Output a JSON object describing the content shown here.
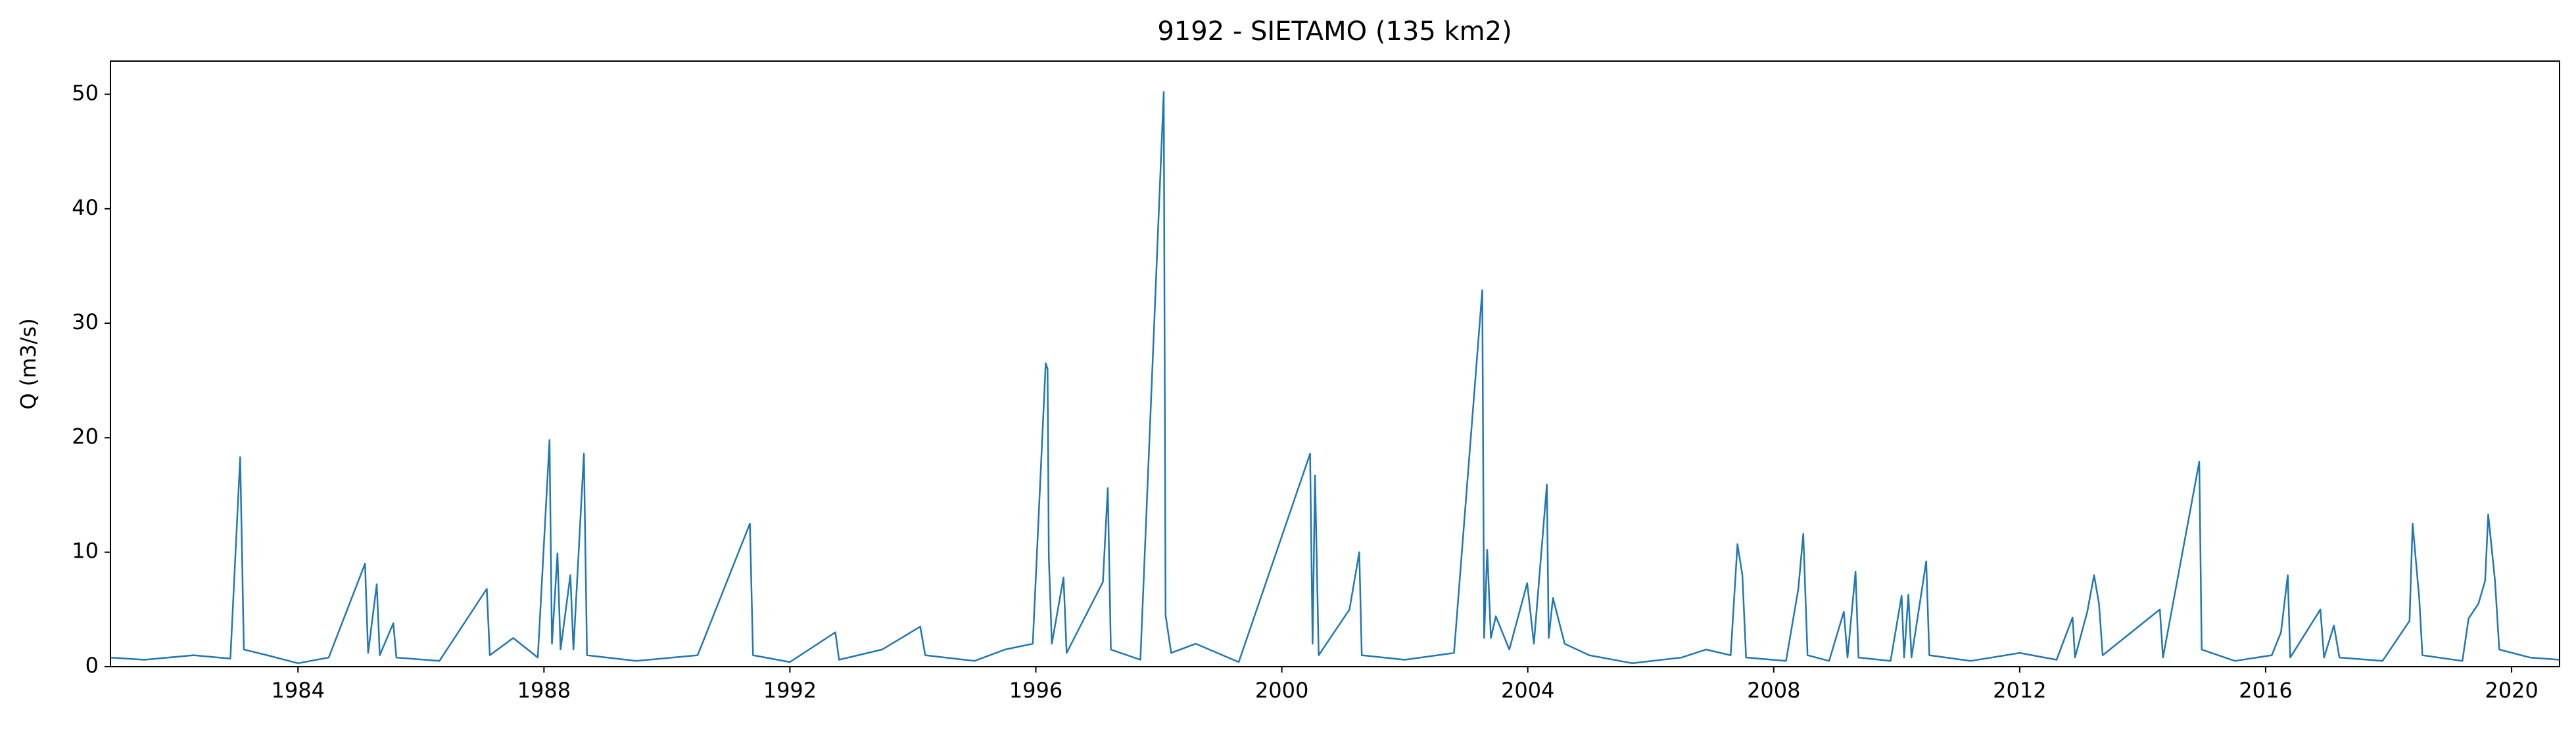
{
  "chart_data": {
    "type": "line",
    "title": "9192 - SIETAMO (135 km2)",
    "ylabel": "Q (m3/s)",
    "color": "#1f77b4",
    "x": [
      1980.95,
      1981.5,
      1982.3,
      1982.9,
      1983.06,
      1983.12,
      1983.5,
      1984.0,
      1984.5,
      1985.09,
      1985.14,
      1985.28,
      1985.33,
      1985.55,
      1985.6,
      1986.3,
      1987.07,
      1987.12,
      1987.5,
      1987.9,
      1988.09,
      1988.13,
      1988.22,
      1988.27,
      1988.43,
      1988.48,
      1988.65,
      1988.7,
      1989.5,
      1990.5,
      1991.35,
      1991.4,
      1992.0,
      1992.74,
      1992.8,
      1993.5,
      1994.12,
      1994.2,
      1995.0,
      1995.5,
      1995.95,
      1996.16,
      1996.19,
      1996.21,
      1996.26,
      1996.45,
      1996.5,
      1997.09,
      1997.17,
      1997.22,
      1997.7,
      1998.08,
      1998.11,
      1998.2,
      1998.6,
      1999.3,
      2000.46,
      2000.5,
      2000.54,
      2000.6,
      2001.1,
      2001.26,
      2001.3,
      2002.0,
      2002.8,
      2003.26,
      2003.29,
      2003.34,
      2003.4,
      2003.48,
      2003.7,
      2003.99,
      2004.1,
      2004.31,
      2004.34,
      2004.41,
      2004.6,
      2005.0,
      2005.7,
      2006.5,
      2006.9,
      2007.3,
      2007.41,
      2007.49,
      2007.55,
      2008.2,
      2008.4,
      2008.48,
      2008.55,
      2008.9,
      2009.14,
      2009.2,
      2009.33,
      2009.38,
      2009.9,
      2010.08,
      2010.12,
      2010.19,
      2010.24,
      2010.48,
      2010.53,
      2011.2,
      2012.0,
      2012.6,
      2012.86,
      2012.9,
      2013.1,
      2013.21,
      2013.29,
      2013.35,
      2014.28,
      2014.33,
      2014.92,
      2014.96,
      2015.5,
      2016.1,
      2016.25,
      2016.36,
      2016.4,
      2016.89,
      2016.95,
      2017.11,
      2017.2,
      2017.9,
      2018.34,
      2018.39,
      2018.5,
      2018.55,
      2019.2,
      2019.3,
      2019.46,
      2019.57,
      2019.62,
      2019.73,
      2019.8,
      2020.3,
      2020.78
    ],
    "values": [
      0.8,
      0.6,
      1.0,
      0.7,
      18.3,
      1.5,
      1.0,
      0.3,
      0.8,
      9.0,
      1.2,
      7.2,
      1.0,
      3.8,
      0.8,
      0.5,
      6.8,
      1.0,
      2.5,
      0.8,
      19.8,
      2,
      9.9,
      1.5,
      8.0,
      1.5,
      18.6,
      1.0,
      0.5,
      1.0,
      12.5,
      1.0,
      0.4,
      3.0,
      0.6,
      1.5,
      3.5,
      1.0,
      0.5,
      1.5,
      2,
      26.5,
      26,
      9.6,
      2,
      7.8,
      1.2,
      7.4,
      15.6,
      1.5,
      0.6,
      50.2,
      4.5,
      1.2,
      2.0,
      0.4,
      18.6,
      2,
      16.7,
      1,
      5.0,
      10,
      1.0,
      0.6,
      1.2,
      32.9,
      2.5,
      10.2,
      2.5,
      4.4,
      1.5,
      7.3,
      2,
      15.9,
      2.5,
      6.0,
      2.0,
      1.0,
      0.3,
      0.8,
      1.5,
      1.0,
      10.7,
      8.0,
      0.8,
      0.5,
      6.8,
      11.6,
      1,
      0.5,
      4.8,
      0.8,
      8.3,
      0.8,
      0.5,
      6.2,
      0.8,
      6.3,
      0.8,
      9.2,
      1,
      0.5,
      1.2,
      0.6,
      4.3,
      0.8,
      4.8,
      8.0,
      5.5,
      1.0,
      5.0,
      0.8,
      17.9,
      1.5,
      0.5,
      1,
      3.0,
      8.0,
      0.8,
      5.0,
      0.8,
      3.6,
      0.8,
      0.5,
      4.0,
      12.5,
      5.8,
      1,
      0.5,
      4.2,
      5.5,
      7.5,
      13.3,
      7.5,
      1.5,
      0.8,
      0.6
    ],
    "xlim": [
      1980.95,
      2020.78
    ],
    "xticks": [
      1984,
      1988,
      1992,
      1996,
      2000,
      2004,
      2008,
      2012,
      2016,
      2020
    ],
    "ylim": [
      0,
      52.9
    ],
    "yticks": [
      0,
      10,
      20,
      30,
      40,
      50
    ]
  }
}
